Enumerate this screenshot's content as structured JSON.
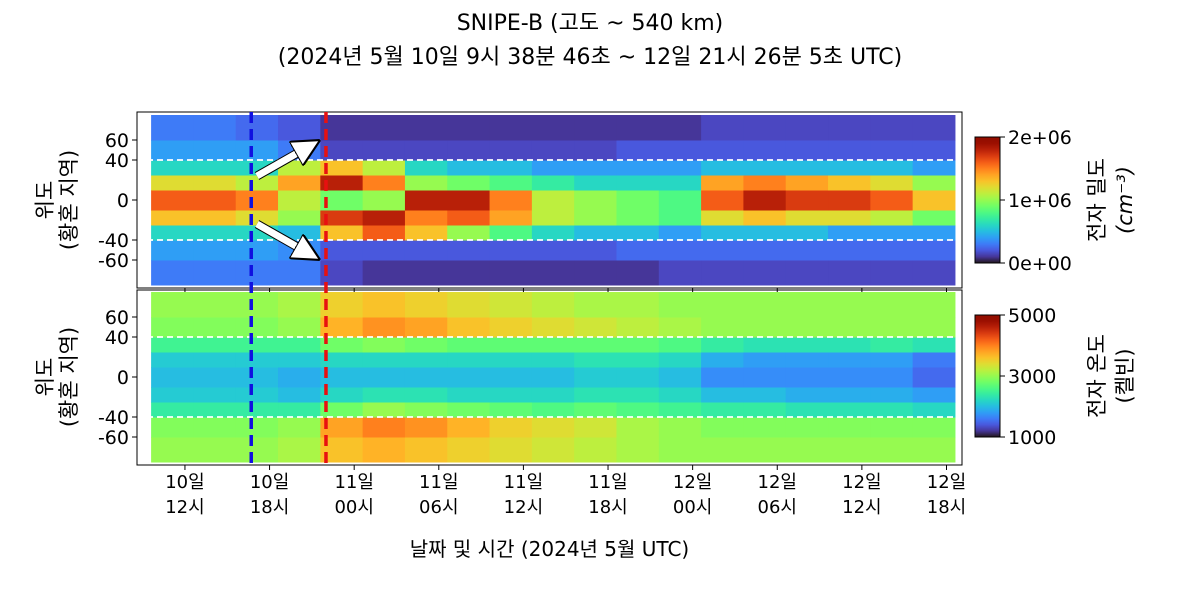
{
  "chart_data": [
    {
      "type": "heatmap",
      "title": [
        "SNIPE-B (고도 ~ 540 km)",
        "(2024년 5월 10일 9시 38분 46초 ~ 12일 21시 26분 5초 UTC)"
      ],
      "ylabel": [
        "위도",
        "(황혼 지역)"
      ],
      "xlim": [
        8.6,
        67.1
      ],
      "ylim": [
        -88,
        88
      ],
      "xticks": [
        12,
        18,
        24,
        30,
        36,
        42,
        48,
        54,
        60,
        66
      ],
      "yticks": [
        60,
        40,
        0,
        -40,
        -60
      ],
      "hlines": [
        40,
        -40
      ],
      "vlines": [
        {
          "x": 16.7,
          "color": "#1010e0"
        },
        {
          "x": 22.0,
          "color": "#e81010"
        }
      ],
      "x": [
        9.6,
        12.6,
        15.6,
        18.6,
        21.6,
        24.6,
        27.6,
        30.6,
        33.6,
        36.6,
        39.6,
        42.6,
        45.6,
        48.6,
        51.6,
        54.6,
        57.6,
        60.6,
        63.6,
        66.6
      ],
      "y": [
        -85,
        -60,
        -40,
        -25,
        -10,
        10,
        25,
        40,
        60,
        85
      ],
      "z": [
        [
          300000.0,
          300000.0,
          300000.0,
          300000.0,
          150000.0,
          100000.0,
          100000.0,
          100000.0,
          100000.0,
          100000.0,
          100000.0,
          100000.0,
          150000.0,
          150000.0,
          150000.0,
          150000.0,
          150000.0,
          150000.0,
          150000.0
        ],
        [
          400000.0,
          400000.0,
          400000.0,
          350000.0,
          200000.0,
          200000.0,
          200000.0,
          200000.0,
          200000.0,
          200000.0,
          200000.0,
          250000.0,
          250000.0,
          250000.0,
          250000.0,
          250000.0,
          250000.0,
          250000.0,
          250000.0
        ],
        [
          600000.0,
          600000.0,
          600000.0,
          500000.0,
          1300000.0,
          1600000.0,
          1300000.0,
          1000000.0,
          800000.0,
          600000.0,
          500000.0,
          500000.0,
          400000.0,
          500000.0,
          500000.0,
          500000.0,
          400000.0,
          400000.0,
          400000.0
        ],
        [
          1300000.0,
          1300000.0,
          1200000.0,
          1000000.0,
          1700000.0,
          1800000.0,
          1500000.0,
          1600000.0,
          1400000.0,
          1100000.0,
          1000000.0,
          900000.0,
          800000.0,
          1200000.0,
          1300000.0,
          1200000.0,
          1200000.0,
          1100000.0,
          900000.0
        ],
        [
          1600000.0,
          1600000.0,
          1500000.0,
          1100000.0,
          900000.0,
          1000000.0,
          1800000.0,
          1800000.0,
          1500000.0,
          1100000.0,
          1000000.0,
          900000.0,
          800000.0,
          1600000.0,
          1800000.0,
          1700000.0,
          1700000.0,
          1600000.0,
          1300000.0
        ],
        [
          1200000.0,
          1200000.0,
          1100000.0,
          1400000.0,
          1800000.0,
          1500000.0,
          1000000.0,
          900000.0,
          800000.0,
          700000.0,
          600000.0,
          600000.0,
          600000.0,
          1400000.0,
          1500000.0,
          1400000.0,
          1300000.0,
          1200000.0,
          1000000.0
        ],
        [
          600000.0,
          600000.0,
          600000.0,
          1100000.0,
          1300000.0,
          1100000.0,
          600000.0,
          500000.0,
          500000.0,
          400000.0,
          400000.0,
          400000.0,
          400000.0,
          500000.0,
          500000.0,
          500000.0,
          500000.0,
          500000.0,
          400000.0
        ],
        [
          400000.0,
          400000.0,
          400000.0,
          300000.0,
          150000.0,
          150000.0,
          150000.0,
          150000.0,
          150000.0,
          150000.0,
          150000.0,
          200000.0,
          200000.0,
          200000.0,
          200000.0,
          200000.0,
          200000.0,
          200000.0,
          200000.0
        ],
        [
          300000.0,
          300000.0,
          250000.0,
          200000.0,
          100000.0,
          100000.0,
          100000.0,
          100000.0,
          100000.0,
          100000.0,
          100000.0,
          100000.0,
          100000.0,
          150000.0,
          150000.0,
          150000.0,
          150000.0,
          150000.0,
          150000.0
        ]
      ],
      "colormap": "turbo",
      "colorbar": {
        "label": [
          "전자 밀도",
          "(cm⁻³)"
        ],
        "lim": [
          0,
          2000000
        ],
        "ticks": [
          {
            "value": 2000000,
            "label": "2e+06"
          },
          {
            "value": 1000000,
            "label": "1e+06"
          },
          {
            "value": 0,
            "label": "0e+00"
          }
        ]
      }
    },
    {
      "type": "heatmap",
      "ylabel": [
        "위도",
        "(황혼 지역)"
      ],
      "xlabel": "날짜 및 시간 (2024년 5월 UTC)",
      "xlim": [
        8.6,
        67.1
      ],
      "ylim": [
        -88,
        87
      ],
      "xticks": [
        {
          "value": 12,
          "label": "10일 12시"
        },
        {
          "value": 18,
          "label": "10일 18시"
        },
        {
          "value": 24,
          "label": "11일 00시"
        },
        {
          "value": 30,
          "label": "11일 06시"
        },
        {
          "value": 36,
          "label": "11일 12시"
        },
        {
          "value": 42,
          "label": "11일 18시"
        },
        {
          "value": 48,
          "label": "12일 00시"
        },
        {
          "value": 54,
          "label": "12일 06시"
        },
        {
          "value": 60,
          "label": "12일 12시"
        },
        {
          "value": 66,
          "label": "12일 18시"
        }
      ],
      "yticks": [
        60,
        40,
        0,
        -40,
        -60
      ],
      "hlines": [
        40,
        -40
      ],
      "x": [
        9.6,
        12.6,
        15.6,
        18.6,
        21.6,
        24.6,
        27.6,
        30.6,
        33.6,
        36.6,
        39.6,
        42.6,
        45.6,
        48.6,
        51.6,
        54.6,
        57.6,
        60.6,
        63.6,
        66.6
      ],
      "y": [
        -85,
        -60,
        -40,
        -25,
        -10,
        10,
        25,
        40,
        60,
        85
      ],
      "z": [
        [
          3000,
          3000,
          3000,
          3100,
          3600,
          3700,
          3600,
          3500,
          3400,
          3300,
          3200,
          3100,
          3000,
          3000,
          3000,
          3000,
          3000,
          3000,
          3000
        ],
        [
          2900,
          2900,
          2900,
          3000,
          3800,
          4000,
          3900,
          3700,
          3500,
          3400,
          3300,
          3100,
          3000,
          2900,
          2900,
          2900,
          2900,
          2900,
          2900
        ],
        [
          2400,
          2400,
          2400,
          2400,
          2800,
          3000,
          2900,
          2800,
          2700,
          2600,
          2700,
          2600,
          2500,
          2400,
          2400,
          2300,
          2300,
          2300,
          2200
        ],
        [
          2100,
          2100,
          2100,
          2000,
          2200,
          2300,
          2300,
          2200,
          2200,
          2200,
          2300,
          2300,
          2200,
          2000,
          2000,
          1900,
          1900,
          1900,
          1800
        ],
        [
          2000,
          2000,
          2000,
          1900,
          2000,
          2000,
          2000,
          2000,
          2000,
          2000,
          2100,
          2100,
          2000,
          1700,
          1700,
          1700,
          1700,
          1700,
          1500
        ],
        [
          2100,
          2100,
          2100,
          2100,
          2200,
          2200,
          2200,
          2200,
          2200,
          2200,
          2300,
          2300,
          2200,
          1900,
          1800,
          1800,
          1800,
          1800,
          1600
        ],
        [
          2500,
          2500,
          2500,
          2500,
          2800,
          2900,
          2800,
          2700,
          2700,
          2700,
          2700,
          2700,
          2600,
          2400,
          2300,
          2300,
          2300,
          2400,
          2300
        ],
        [
          2900,
          2900,
          2900,
          3000,
          3700,
          3900,
          3800,
          3600,
          3500,
          3400,
          3300,
          3200,
          3100,
          3000,
          3000,
          3000,
          3000,
          3000,
          3000
        ],
        [
          3000,
          3000,
          3000,
          3100,
          3500,
          3600,
          3500,
          3400,
          3300,
          3200,
          3100,
          3100,
          3000,
          3000,
          3000,
          3000,
          3000,
          3000,
          3000
        ]
      ],
      "colormap": "turbo",
      "colorbar": {
        "label": [
          "전자 온도",
          "(켈빈)"
        ],
        "lim": [
          1000,
          5000
        ],
        "ticks": [
          5000,
          3000,
          1000
        ]
      }
    }
  ]
}
